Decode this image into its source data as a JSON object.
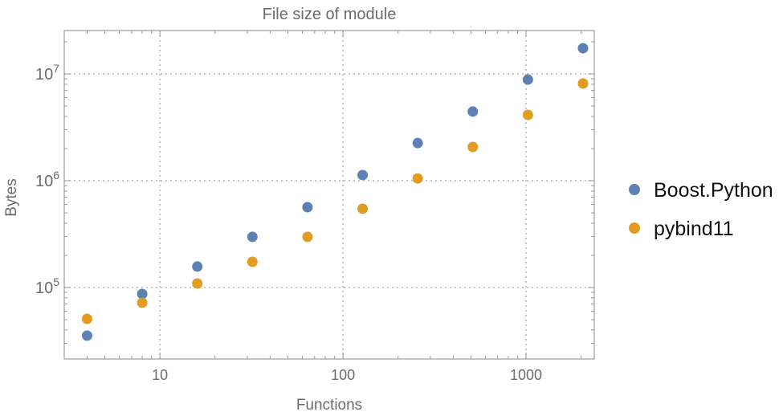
{
  "chart_data": {
    "type": "scatter",
    "title": "File size of module",
    "xlabel": "Functions",
    "ylabel": "Bytes",
    "xscale": "log",
    "yscale": "log",
    "xlim": [
      3.0,
      2360
    ],
    "ylim": [
      21400,
      25500000
    ],
    "grid": true,
    "legend_position": "right",
    "x_ticks": [
      {
        "value": 10,
        "label": "10"
      },
      {
        "value": 100,
        "label": "100"
      },
      {
        "value": 1000,
        "label": "1000"
      }
    ],
    "y_ticks": [
      {
        "value": 100000,
        "base": "10",
        "exp": "5"
      },
      {
        "value": 1000000,
        "base": "10",
        "exp": "6"
      },
      {
        "value": 10000000,
        "base": "10",
        "exp": "7"
      }
    ],
    "x": [
      4,
      8,
      16,
      32,
      64,
      128,
      256,
      512,
      1024,
      2048
    ],
    "series": [
      {
        "name": "Boost.Python",
        "color": "#5E81B5",
        "values": [
          35400,
          87000,
          157000,
          298000,
          565000,
          1130000,
          2250000,
          4440000,
          8860000,
          17400000
        ]
      },
      {
        "name": "pybind11",
        "color": "#E19C24",
        "values": [
          50900,
          72000,
          109000,
          174000,
          298000,
          546000,
          1050000,
          2070000,
          4140000,
          8130000
        ]
      }
    ]
  }
}
